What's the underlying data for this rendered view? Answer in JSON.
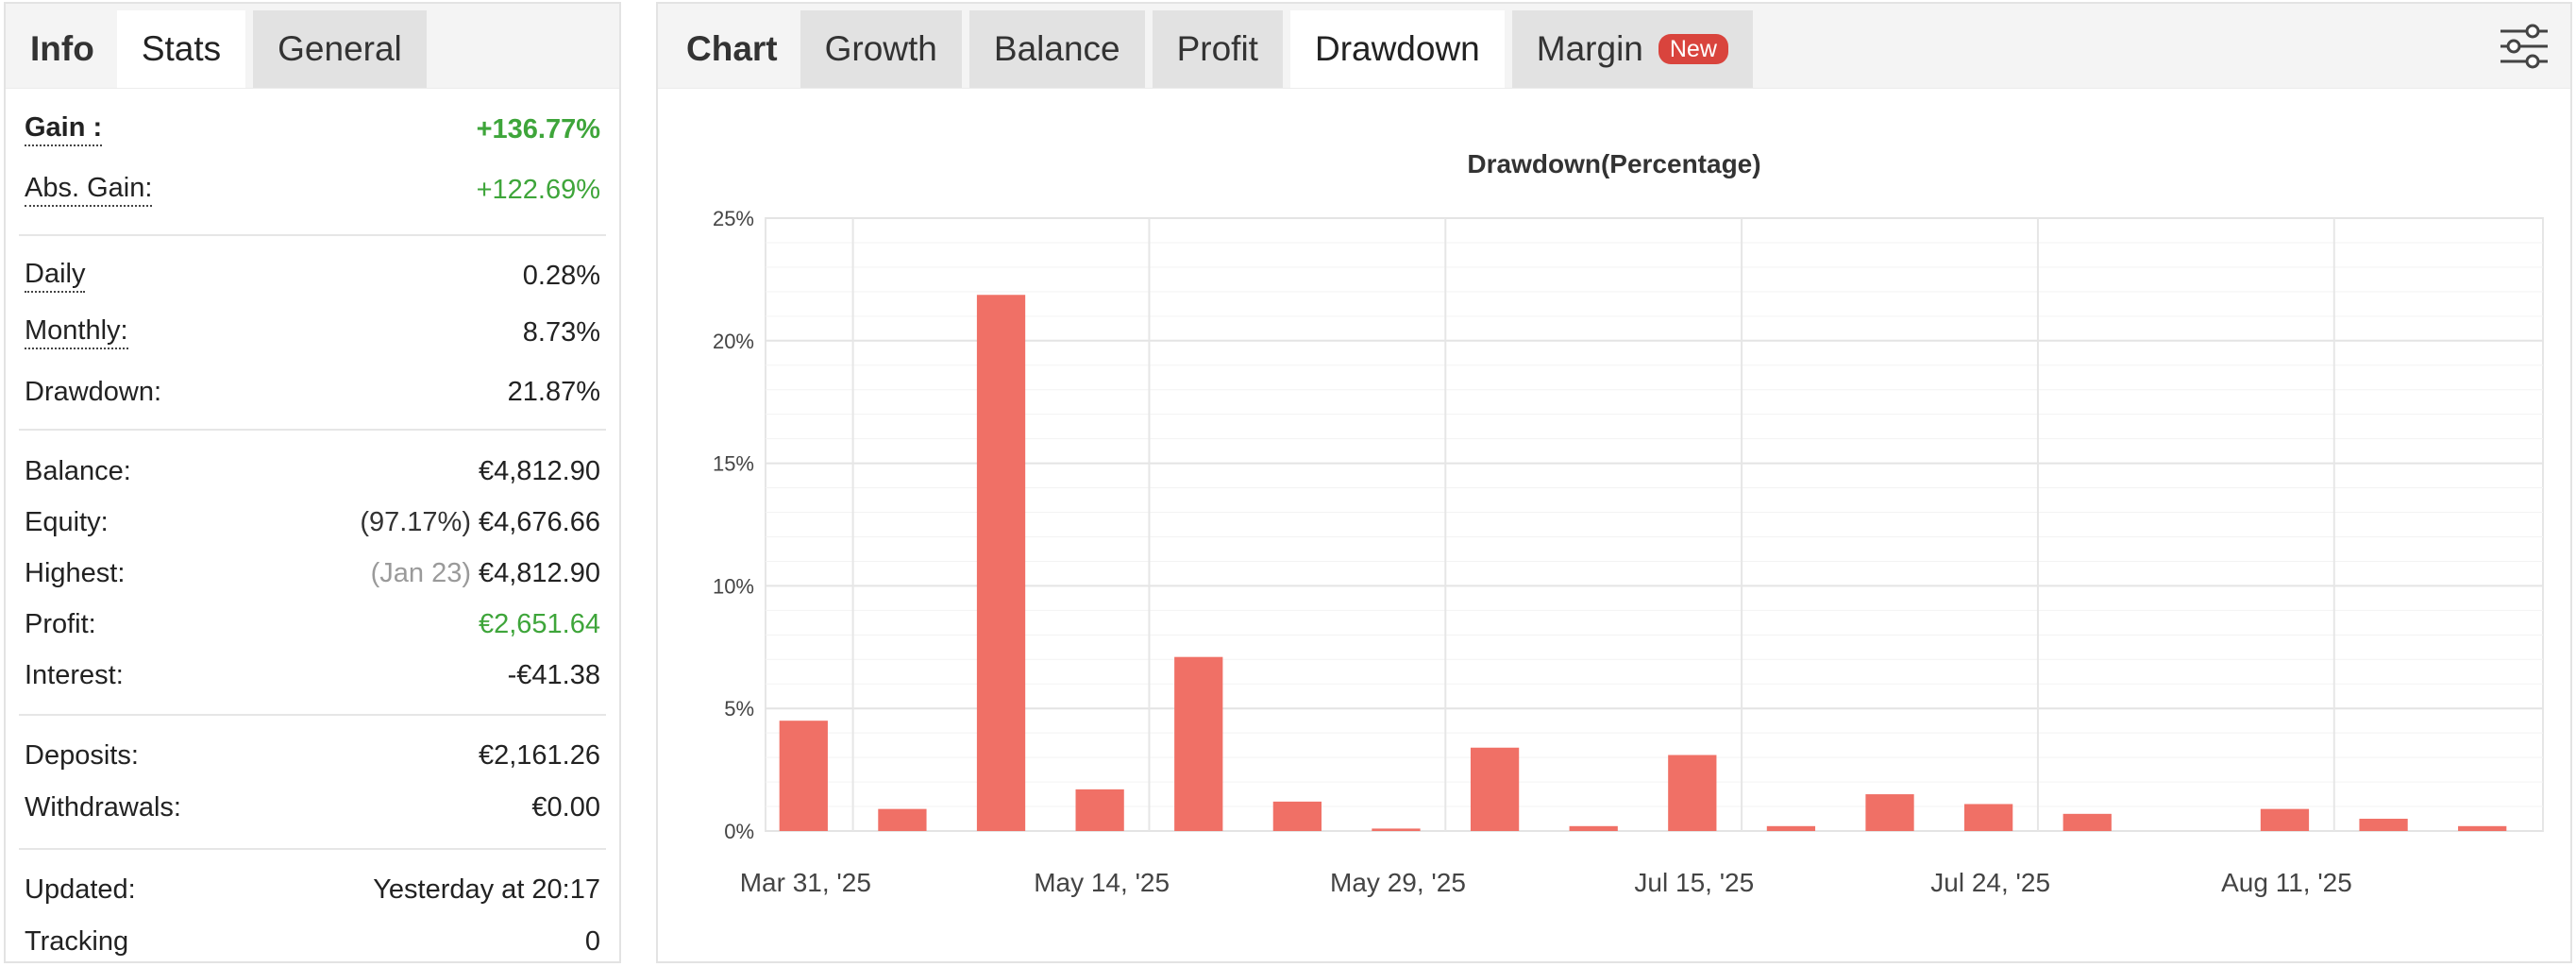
{
  "left_tabs": [
    {
      "label": "Info",
      "style": "plain"
    },
    {
      "label": "Stats",
      "style": "active"
    },
    {
      "label": "General",
      "style": "inactive"
    }
  ],
  "stats": {
    "gain": {
      "label": "Gain :",
      "value": "+136.77%"
    },
    "abs_gain": {
      "label": "Abs. Gain:",
      "value": "+122.69%"
    },
    "daily": {
      "label": "Daily",
      "value": "0.28%"
    },
    "monthly": {
      "label": "Monthly:",
      "value": "8.73%"
    },
    "drawdown": {
      "label": "Drawdown:",
      "value": "21.87%"
    },
    "balance": {
      "label": "Balance:",
      "value": "€4,812.90"
    },
    "equity": {
      "label": "Equity:",
      "note": "(97.17%)",
      "value": "€4,676.66"
    },
    "highest": {
      "label": "Highest:",
      "note": "(Jan 23)",
      "value": "€4,812.90"
    },
    "profit": {
      "label": "Profit:",
      "value": "€2,651.64"
    },
    "interest": {
      "label": "Interest:",
      "value": "-€41.38"
    },
    "deposits": {
      "label": "Deposits:",
      "value": "€2,161.26"
    },
    "withdrawals": {
      "label": "Withdrawals:",
      "value": "€0.00"
    },
    "updated": {
      "label": "Updated:",
      "value": "Yesterday at 20:17"
    },
    "tracking": {
      "label": "Tracking",
      "value": "0"
    }
  },
  "right_tabs": [
    {
      "label": "Chart",
      "style": "plain"
    },
    {
      "label": "Growth",
      "style": "inactive"
    },
    {
      "label": "Balance",
      "style": "inactive"
    },
    {
      "label": "Profit",
      "style": "inactive"
    },
    {
      "label": "Drawdown",
      "style": "active"
    },
    {
      "label": "Margin",
      "style": "inactive",
      "badge": "New"
    }
  ],
  "settings_icon": "sliders-icon",
  "colors": {
    "bar": "#f07066",
    "green": "#3ea53a",
    "badge": "#d9443d"
  },
  "chart_data": {
    "type": "bar",
    "title": "Drawdown(Percentage)",
    "xlabel": "",
    "ylabel": "",
    "ylim": [
      0,
      25
    ],
    "y_ticks": [
      "0%",
      "5%",
      "10%",
      "15%",
      "20%",
      "25%"
    ],
    "x_tick_labels": [
      "Mar 31, '25",
      "May 14, '25",
      "May 29, '25",
      "Jul 15, '25",
      "Jul 24, '25",
      "Aug 11, '25"
    ],
    "values": [
      4.5,
      0.9,
      21.87,
      1.7,
      7.1,
      1.2,
      0.1,
      3.4,
      0.2,
      3.1,
      0.2,
      1.5,
      1.1,
      0.7,
      0,
      0.9,
      0.5,
      0.2
    ],
    "grid": true,
    "legend": "none"
  }
}
